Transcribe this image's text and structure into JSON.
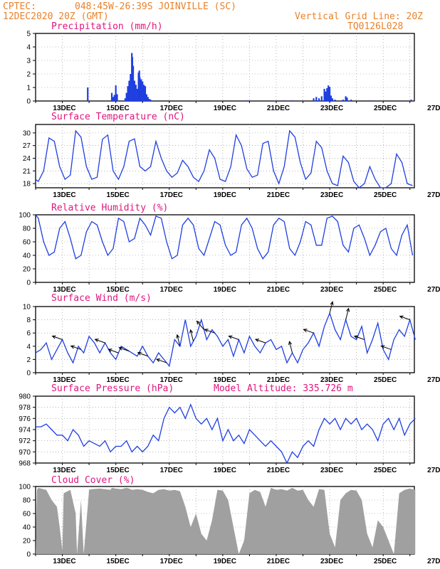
{
  "header": {
    "source": "CPTEC:",
    "location": "048:45W-26:39S  JOINVILLE (SC)",
    "date": "12DEC2020 20Z (GMT)",
    "grid_note": "Vertical Grid Line: 20Z",
    "code": "TQ0126L028"
  },
  "colors": {
    "line": "#1f3fe0",
    "cloud": "#a0a0a0",
    "header": "#e8822a",
    "title": "#e0157e"
  },
  "x_ticks": [
    "13DEC",
    "15DEC",
    "17DEC",
    "19DEC",
    "21DEC",
    "23DEC",
    "25DEC",
    "27DEC"
  ],
  "chart_data": [
    {
      "type": "bar",
      "title": "Precipitation (mm/h)",
      "ylim": [
        0,
        5
      ],
      "yticks": [
        0,
        1,
        2,
        3,
        4,
        5
      ],
      "x_unit": "days since 12DEC2020 20Z",
      "bars": [
        [
          1.95,
          1.0
        ],
        [
          2.85,
          0.6
        ],
        [
          2.9,
          0.3
        ],
        [
          2.95,
          0.45
        ],
        [
          3.0,
          1.15
        ],
        [
          3.05,
          0.5
        ],
        [
          3.35,
          0.2
        ],
        [
          3.4,
          0.6
        ],
        [
          3.45,
          1.1
        ],
        [
          3.5,
          1.5
        ],
        [
          3.55,
          2.0
        ],
        [
          3.6,
          3.55
        ],
        [
          3.62,
          3.25
        ],
        [
          3.65,
          2.6
        ],
        [
          3.7,
          1.5
        ],
        [
          3.75,
          1.2
        ],
        [
          3.8,
          0.9
        ],
        [
          3.85,
          2.1
        ],
        [
          3.88,
          2.25
        ],
        [
          3.9,
          1.75
        ],
        [
          3.95,
          1.6
        ],
        [
          4.0,
          1.45
        ],
        [
          4.05,
          1.2
        ],
        [
          4.1,
          1.1
        ],
        [
          4.15,
          0.5
        ],
        [
          4.2,
          0.3
        ],
        [
          4.25,
          0.15
        ],
        [
          4.3,
          0.1
        ],
        [
          7.9,
          0.05
        ],
        [
          9.3,
          0.05
        ],
        [
          9.6,
          0.05
        ],
        [
          10.4,
          0.2
        ],
        [
          10.5,
          0.3
        ],
        [
          10.6,
          0.2
        ],
        [
          10.7,
          0.35
        ],
        [
          10.8,
          0.9
        ],
        [
          10.85,
          0.7
        ],
        [
          10.9,
          0.95
        ],
        [
          10.95,
          1.15
        ],
        [
          11.0,
          1.05
        ],
        [
          11.05,
          0.4
        ],
        [
          11.1,
          0.2
        ],
        [
          11.2,
          0.1
        ],
        [
          11.5,
          0.1
        ],
        [
          11.6,
          0.35
        ],
        [
          11.65,
          0.25
        ],
        [
          11.8,
          0.1
        ],
        [
          12.5,
          0.05
        ],
        [
          14.05,
          0.1
        ]
      ]
    },
    {
      "type": "line",
      "title": "Surface Temperature (nC)",
      "ylim": [
        17,
        32
      ],
      "yticks": [
        18,
        21,
        24,
        27,
        30
      ],
      "x": [
        0,
        0.1,
        0.3,
        0.5,
        0.7,
        0.9,
        1.1,
        1.3,
        1.5,
        1.7,
        1.9,
        2.1,
        2.3,
        2.5,
        2.7,
        2.9,
        3.1,
        3.3,
        3.5,
        3.7,
        3.9,
        4.1,
        4.3,
        4.5,
        4.7,
        4.9,
        5.1,
        5.3,
        5.5,
        5.7,
        5.9,
        6.1,
        6.3,
        6.5,
        6.7,
        6.9,
        7.1,
        7.3,
        7.5,
        7.7,
        7.9,
        8.1,
        8.3,
        8.5,
        8.7,
        8.9,
        9.1,
        9.3,
        9.5,
        9.7,
        9.9,
        10.1,
        10.3,
        10.5,
        10.7,
        10.9,
        11.1,
        11.3,
        11.5,
        11.7,
        11.9,
        12.1,
        12.3,
        12.5,
        12.7,
        12.9,
        13.1,
        13.3,
        13.5,
        13.7,
        13.9,
        14.1
      ],
      "y": [
        19,
        18.5,
        21,
        28.8,
        28,
        22,
        19,
        20,
        30.5,
        29,
        22,
        19,
        19.5,
        28.5,
        29.5,
        21,
        19,
        22,
        28,
        28.6,
        22,
        21,
        22,
        28,
        24,
        21,
        19.5,
        20.5,
        23.5,
        22,
        19.5,
        18.5,
        21,
        26,
        24,
        19,
        18.5,
        22,
        29.5,
        27,
        21.5,
        19.5,
        20,
        27.5,
        28,
        21,
        18,
        22,
        30.5,
        29,
        23,
        19,
        20.5,
        28,
        26.5,
        21,
        18,
        17.5,
        24.5,
        23,
        18.5,
        17,
        18,
        22,
        19,
        17,
        17,
        18,
        25,
        23,
        18,
        17.5
      ]
    },
    {
      "type": "line",
      "title": "Relative Humidity (%)",
      "ylim": [
        0,
        100
      ],
      "yticks": [
        0,
        20,
        40,
        60,
        80,
        100
      ],
      "x": [
        0,
        0.1,
        0.3,
        0.5,
        0.7,
        0.9,
        1.1,
        1.3,
        1.5,
        1.7,
        1.9,
        2.1,
        2.3,
        2.5,
        2.7,
        2.9,
        3.1,
        3.3,
        3.5,
        3.7,
        3.9,
        4.1,
        4.3,
        4.5,
        4.7,
        4.9,
        5.1,
        5.3,
        5.5,
        5.7,
        5.9,
        6.1,
        6.3,
        6.5,
        6.7,
        6.9,
        7.1,
        7.3,
        7.5,
        7.7,
        7.9,
        8.1,
        8.3,
        8.5,
        8.7,
        8.9,
        9.1,
        9.3,
        9.5,
        9.7,
        9.9,
        10.1,
        10.3,
        10.5,
        10.7,
        10.9,
        11.1,
        11.3,
        11.5,
        11.7,
        11.9,
        12.1,
        12.3,
        12.5,
        12.7,
        12.9,
        13.1,
        13.3,
        13.5,
        13.7,
        13.9,
        14.1
      ],
      "y": [
        100,
        95,
        60,
        40,
        45,
        80,
        90,
        65,
        35,
        40,
        75,
        90,
        85,
        60,
        40,
        50,
        95,
        90,
        60,
        65,
        95,
        85,
        70,
        98,
        95,
        60,
        35,
        40,
        85,
        95,
        85,
        50,
        40,
        65,
        90,
        85,
        55,
        40,
        45,
        85,
        95,
        80,
        50,
        35,
        45,
        85,
        95,
        90,
        50,
        40,
        60,
        90,
        85,
        55,
        55,
        95,
        98,
        90,
        55,
        45,
        80,
        85,
        65,
        40,
        55,
        75,
        80,
        50,
        40,
        70,
        85,
        40
      ]
    },
    {
      "type": "line",
      "title": "Surface Wind (m/s)",
      "ylim": [
        0,
        10
      ],
      "yticks": [
        0,
        2,
        4,
        6,
        8,
        10
      ],
      "x": [
        0,
        0.2,
        0.4,
        0.6,
        0.8,
        1.0,
        1.2,
        1.4,
        1.6,
        1.8,
        2.0,
        2.2,
        2.4,
        2.6,
        2.8,
        3.0,
        3.2,
        3.4,
        3.6,
        3.8,
        4.0,
        4.2,
        4.4,
        4.6,
        4.8,
        5.0,
        5.2,
        5.4,
        5.6,
        5.8,
        6.0,
        6.2,
        6.4,
        6.6,
        6.8,
        7.0,
        7.2,
        7.4,
        7.6,
        7.8,
        8.0,
        8.2,
        8.4,
        8.6,
        8.8,
        9.0,
        9.2,
        9.4,
        9.6,
        9.8,
        10.0,
        10.2,
        10.4,
        10.6,
        10.8,
        11.0,
        11.2,
        11.4,
        11.6,
        11.8,
        12.0,
        12.2,
        12.4,
        12.6,
        12.8,
        13.0,
        13.2,
        13.4,
        13.6,
        13.8,
        14.0,
        14.2
      ],
      "y": [
        3,
        3.5,
        4.5,
        2,
        3.5,
        5,
        3,
        1.5,
        4,
        3,
        5.5,
        4.5,
        3,
        4.5,
        3,
        2,
        4,
        3.5,
        3,
        2.5,
        4,
        2.5,
        1.5,
        3,
        2,
        1,
        5,
        4,
        8,
        4,
        5.5,
        8,
        5,
        6.5,
        5.5,
        4,
        5,
        2.5,
        5,
        3,
        5.5,
        4,
        3,
        4.5,
        5,
        3.5,
        4,
        1.5,
        3,
        1.5,
        3.5,
        4.5,
        6,
        4,
        7,
        9,
        6.5,
        5,
        8,
        5.5,
        5,
        7,
        3,
        5,
        7.5,
        3.5,
        2,
        5,
        6.5,
        5.5,
        8,
        5
      ],
      "arrows": [
        [
          1.0,
          0
        ],
        [
          1.7,
          0
        ],
        [
          2.6,
          0
        ],
        [
          3.1,
          0
        ],
        [
          3.5,
          0
        ],
        [
          4.2,
          0
        ],
        [
          4.9,
          0
        ],
        [
          5.4,
          2
        ],
        [
          5.9,
          2
        ],
        [
          6.3,
          1
        ],
        [
          6.7,
          0
        ],
        [
          7.6,
          0
        ],
        [
          8.6,
          0
        ],
        [
          9.6,
          2
        ],
        [
          10.4,
          0
        ],
        [
          11.0,
          4
        ],
        [
          11.6,
          4
        ],
        [
          12.3,
          0
        ],
        [
          13.3,
          0
        ],
        [
          14.0,
          0
        ]
      ]
    },
    {
      "type": "line",
      "title": "Surface Pressure (hPa)",
      "annotation": "Model Altitude: 335.726  m",
      "ylim": [
        968,
        980
      ],
      "yticks": [
        968,
        970,
        972,
        974,
        976,
        978,
        980
      ],
      "x": [
        0,
        0.2,
        0.4,
        0.6,
        0.8,
        1.0,
        1.2,
        1.4,
        1.6,
        1.8,
        2.0,
        2.2,
        2.4,
        2.6,
        2.8,
        3.0,
        3.2,
        3.4,
        3.6,
        3.8,
        4.0,
        4.2,
        4.4,
        4.6,
        4.8,
        5.0,
        5.2,
        5.4,
        5.6,
        5.8,
        6.0,
        6.2,
        6.4,
        6.6,
        6.8,
        7.0,
        7.2,
        7.4,
        7.6,
        7.8,
        8.0,
        8.2,
        8.4,
        8.6,
        8.8,
        9.0,
        9.2,
        9.4,
        9.6,
        9.8,
        10.0,
        10.2,
        10.4,
        10.6,
        10.8,
        11.0,
        11.2,
        11.4,
        11.6,
        11.8,
        12.0,
        12.2,
        12.4,
        12.6,
        12.8,
        13.0,
        13.2,
        13.4,
        13.6,
        13.8,
        14.0,
        14.2
      ],
      "y": [
        974.5,
        974.5,
        975,
        974,
        973,
        973,
        972,
        974,
        973,
        971,
        972,
        971.5,
        971,
        972,
        970,
        971,
        971,
        972,
        970,
        971,
        970,
        971,
        973,
        972,
        976,
        978,
        977,
        978,
        976,
        978.5,
        976,
        975,
        976,
        974,
        976,
        972,
        974,
        972,
        973,
        971.5,
        974,
        973,
        972,
        971,
        972,
        971,
        970,
        968,
        970,
        969,
        971,
        972,
        971,
        974,
        976,
        975,
        976,
        974,
        976,
        975,
        976,
        974,
        975,
        974,
        972,
        975,
        976,
        974,
        976,
        973,
        975,
        976
      ]
    },
    {
      "type": "area",
      "title": "Cloud Cover (%)",
      "ylim": [
        0,
        100
      ],
      "yticks": [
        0,
        20,
        40,
        60,
        80,
        100
      ],
      "x": [
        0,
        0.05,
        0.1,
        0.4,
        0.6,
        0.8,
        0.9,
        1.0,
        1.05,
        1.3,
        1.5,
        1.55,
        1.7,
        1.8,
        1.95,
        2.0,
        2.1,
        2.4,
        2.6,
        2.8,
        2.85,
        3.0,
        3.2,
        3.4,
        3.5,
        3.6,
        3.8,
        4.0,
        4.2,
        4.4,
        4.6,
        4.8,
        5.0,
        5.2,
        5.4,
        5.6,
        5.8,
        6.0,
        6.2,
        6.4,
        6.6,
        6.8,
        7.0,
        7.2,
        7.4,
        7.6,
        7.8,
        8.0,
        8.2,
        8.4,
        8.6,
        8.8,
        9.0,
        9.2,
        9.4,
        9.6,
        9.8,
        10.0,
        10.2,
        10.4,
        10.6,
        10.8,
        11.0,
        11.2,
        11.4,
        11.6,
        11.8,
        12.0,
        12.2,
        12.4,
        12.6,
        12.8,
        13.0,
        13.2,
        13.4,
        13.6,
        13.8,
        14.0,
        14.2
      ],
      "y": [
        0,
        95,
        98,
        95,
        80,
        70,
        40,
        5,
        90,
        95,
        60,
        0,
        80,
        0,
        70,
        95,
        96,
        97,
        96,
        95,
        98,
        97,
        96,
        98,
        97,
        95,
        96,
        95,
        92,
        90,
        95,
        96,
        94,
        95,
        93,
        70,
        40,
        60,
        30,
        20,
        50,
        95,
        94,
        80,
        40,
        0,
        20,
        90,
        95,
        92,
        70,
        98,
        95,
        96,
        94,
        98,
        94,
        95,
        80,
        70,
        96,
        95,
        30,
        10,
        80,
        90,
        95,
        94,
        80,
        30,
        10,
        50,
        40,
        20,
        0,
        90,
        95,
        97,
        95
      ]
    }
  ]
}
